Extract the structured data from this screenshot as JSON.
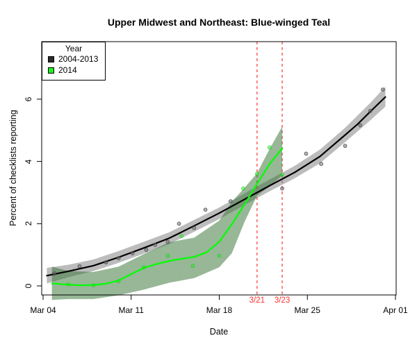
{
  "title": "Upper Midwest and Northeast: Blue-winged Teal",
  "axes": {
    "x_label": "Date",
    "y_label": "Percent of checklists reporting",
    "x_ticks": [
      {
        "label": "Mar 04",
        "day": 0
      },
      {
        "label": "Mar 11",
        "day": 7
      },
      {
        "label": "Mar 18",
        "day": 14
      },
      {
        "label": "Mar 25",
        "day": 21
      },
      {
        "label": "Apr 01",
        "day": 28
      }
    ],
    "y_ticks": [
      {
        "label": "0",
        "value": 0
      },
      {
        "label": "2",
        "value": 2
      },
      {
        "label": "4",
        "value": 4
      },
      {
        "label": "6",
        "value": 6
      }
    ]
  },
  "legend": {
    "title": "Year",
    "items": [
      {
        "label": "2004-2013",
        "color": "#2b2b2b"
      },
      {
        "label": "2014",
        "color": "#22ee22"
      }
    ]
  },
  "chart_data": {
    "type": "line",
    "title": "Upper Midwest and Northeast: Blue-winged Teal",
    "xlabel": "Date",
    "ylabel": "Percent of checklists reporting",
    "x_unit_note": "days since Mar 04",
    "x_tick_days": [
      0,
      7,
      14,
      21,
      28
    ],
    "x_tick_labels": [
      "Mar 04",
      "Mar 11",
      "Mar 18",
      "Mar 25",
      "Apr 01"
    ],
    "ylim": [
      -0.5,
      8.1
    ],
    "grid": false,
    "legend_position": "top-left",
    "vline_color": "#ff5050",
    "vline_label_color": "#ff2d2d",
    "vlines": [
      {
        "day": 17,
        "label": "3/21"
      },
      {
        "day": 19,
        "label": "3/23"
      }
    ],
    "series": [
      {
        "name": "2004-2013",
        "line_color": "#000000",
        "band_color": "#7a7a7a",
        "point_color": "#787878",
        "smooth_d": [
          0.3,
          2,
          4,
          6,
          8,
          10,
          12,
          14,
          16,
          18,
          20,
          22,
          24,
          25,
          26,
          27.2
        ],
        "smooth_v": [
          0.33,
          0.47,
          0.65,
          0.92,
          1.22,
          1.53,
          1.93,
          2.34,
          2.78,
          3.22,
          3.65,
          4.16,
          4.85,
          5.2,
          5.6,
          6.07
        ],
        "band_d": [
          0.3,
          2,
          4,
          6,
          8,
          10,
          12,
          14,
          16,
          18,
          20,
          22,
          24,
          26,
          27.2
        ],
        "band_lo": [
          0.08,
          0.28,
          0.48,
          0.74,
          1.04,
          1.34,
          1.74,
          2.15,
          2.6,
          3.04,
          3.46,
          3.94,
          4.62,
          5.32,
          5.76
        ],
        "band_hi": [
          0.58,
          0.68,
          0.85,
          1.12,
          1.42,
          1.72,
          2.12,
          2.52,
          2.97,
          3.42,
          3.86,
          4.38,
          5.08,
          5.88,
          6.4
        ],
        "points_d": [
          0.9,
          2.9,
          5.0,
          6.0,
          7.1,
          8.2,
          8.9,
          9.9,
          10.8,
          12.0,
          12.9,
          14.9,
          19.0,
          20.9,
          22.1,
          24.0,
          25.2,
          26.0,
          27.0
        ],
        "points_v": [
          0.4,
          0.63,
          0.76,
          0.89,
          1.05,
          1.16,
          1.32,
          1.42,
          2.0,
          1.86,
          2.45,
          2.72,
          3.13,
          4.25,
          3.92,
          4.5,
          5.16,
          5.62,
          6.31
        ]
      },
      {
        "name": "2014",
        "line_color": "#00ff00",
        "band_color": "#2f6f2f",
        "point_color": "#33ff33",
        "smooth_d": [
          0.7,
          2,
          3,
          4,
          5,
          6,
          7,
          8,
          9,
          10,
          11,
          12,
          13,
          14,
          15,
          16,
          17,
          18,
          19
        ],
        "smooth_v": [
          0.08,
          0.04,
          0.02,
          0.03,
          0.07,
          0.18,
          0.38,
          0.58,
          0.7,
          0.8,
          0.87,
          0.93,
          1.08,
          1.42,
          1.98,
          2.62,
          3.28,
          3.92,
          4.42
        ],
        "band_d": [
          0.7,
          2,
          4,
          6,
          8,
          10,
          12,
          14,
          15,
          16,
          17,
          18,
          19
        ],
        "band_lo": [
          -0.45,
          -0.42,
          -0.42,
          -0.3,
          -0.12,
          0.1,
          0.25,
          0.6,
          1.05,
          2.05,
          2.9,
          3.2,
          3.55
        ],
        "band_hi": [
          0.62,
          0.48,
          0.45,
          0.62,
          1.02,
          1.4,
          1.55,
          2.1,
          2.7,
          3.15,
          3.62,
          4.4,
          5.12
        ],
        "points_d": [
          2.0,
          4.0,
          6.0,
          8.0,
          9.9,
          11.0,
          11.9,
          14.0,
          15.9,
          17.0,
          18.0,
          19.0
        ],
        "points_v": [
          0.05,
          0.02,
          0.15,
          0.6,
          0.97,
          1.6,
          0.64,
          0.97,
          3.13,
          3.6,
          4.45,
          3.57
        ]
      }
    ]
  }
}
